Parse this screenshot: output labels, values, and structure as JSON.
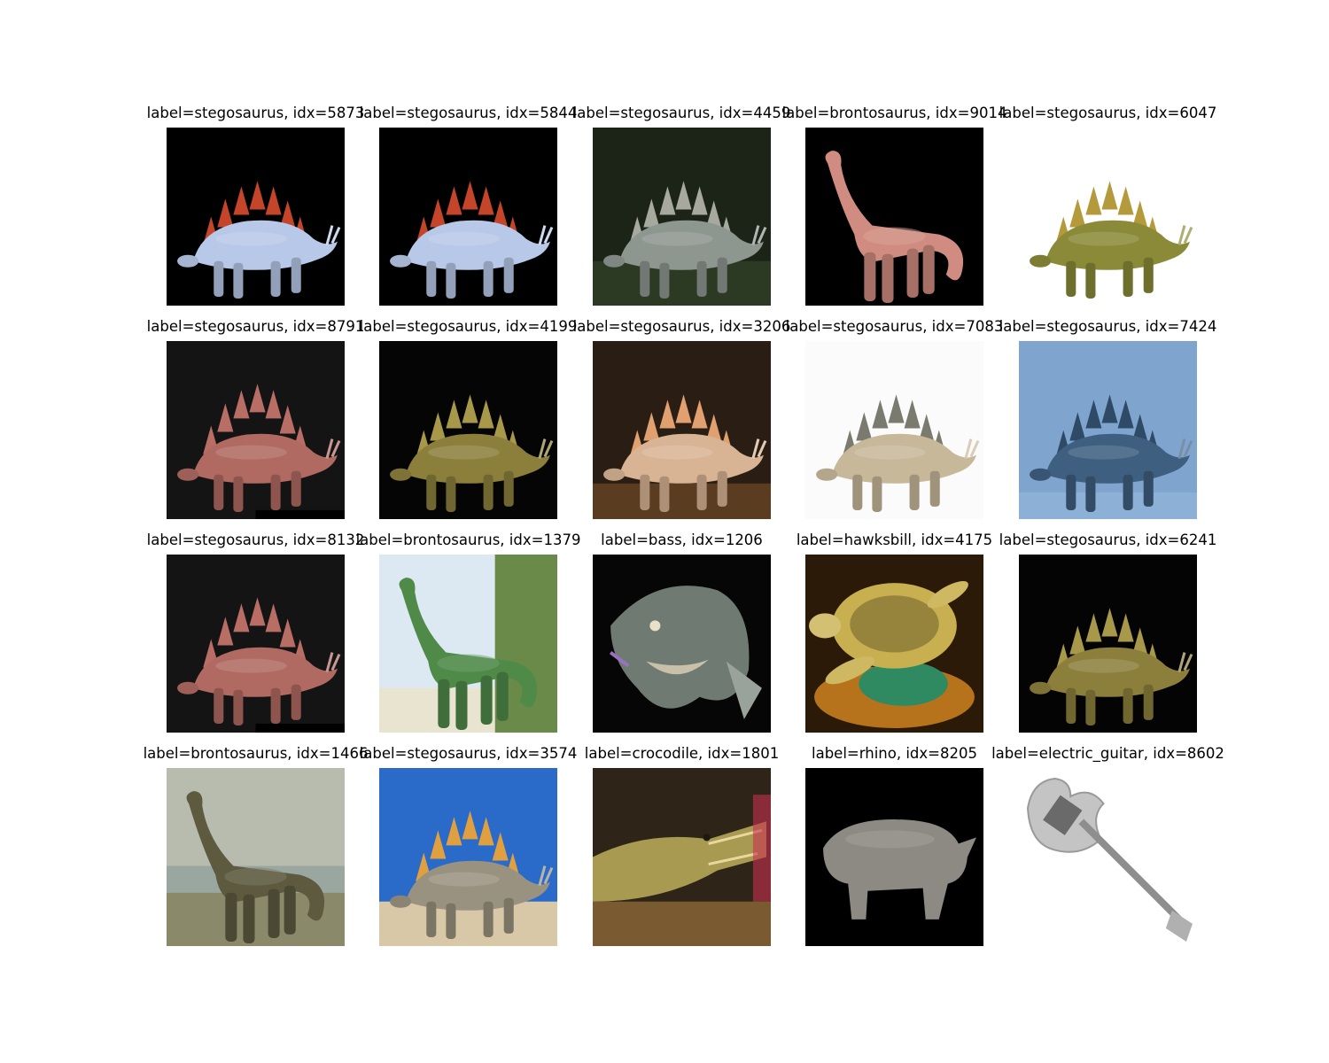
{
  "figure": {
    "panels": [
      {
        "title": "label=stegosaurus, idx=5873",
        "subject": "stegosaurus",
        "scene": "stego-colorful",
        "bg": "#000000",
        "body": "#b8c8e8",
        "accent": "#c4452a"
      },
      {
        "title": "label=stegosaurus, idx=5844",
        "subject": "stegosaurus",
        "scene": "stego-colorful",
        "bg": "#000000",
        "body": "#b8c8e8",
        "accent": "#c4452a"
      },
      {
        "title": "label=stegosaurus, idx=4459",
        "subject": "stegosaurus",
        "scene": "stego-gray",
        "bg": "#1c2418",
        "body": "#8e9690",
        "accent": "#a7a89e"
      },
      {
        "title": "label=brontosaurus, idx=9014",
        "subject": "brontosaurus",
        "scene": "bronto-pink",
        "bg": "#000000",
        "body": "#d08c80",
        "accent": "#b66f66"
      },
      {
        "title": "label=stegosaurus, idx=6047",
        "subject": "stegosaurus",
        "scene": "stego-olive",
        "bg": "#ffffff",
        "body": "#8a8a38",
        "accent": "#b49a3a"
      },
      {
        "title": "label=stegosaurus, idx=8791",
        "subject": "stegosaurus",
        "scene": "stego-red",
        "bg": "#141414",
        "body": "#b06a62",
        "accent": "#b86e64"
      },
      {
        "title": "label=stegosaurus, idx=4199",
        "subject": "stegosaurus",
        "scene": "stego-yellow",
        "bg": "#050505",
        "body": "#8c7f3c",
        "accent": "#a8994a"
      },
      {
        "title": "label=stegosaurus, idx=3206",
        "subject": "stegosaurus",
        "scene": "stego-tan",
        "bg": "#2a1e14",
        "body": "#d8b494",
        "accent": "#e0a070"
      },
      {
        "title": "label=stegosaurus, idx=7083",
        "subject": "stegosaurus",
        "scene": "stego-white",
        "bg": "#fbfbfb",
        "body": "#c8b89a",
        "accent": "#7a7a6e"
      },
      {
        "title": "label=stegosaurus, idx=7424",
        "subject": "stegosaurus",
        "scene": "stego-blue",
        "bg": "#7fa5cf",
        "body": "#3e5f80",
        "accent": "#2e4a66"
      },
      {
        "title": "label=stegosaurus, idx=8132",
        "subject": "stegosaurus",
        "scene": "stego-red",
        "bg": "#141414",
        "body": "#b06a62",
        "accent": "#b86e64"
      },
      {
        "title": "label=brontosaurus, idx=1379",
        "subject": "brontosaurus",
        "scene": "bronto-green",
        "bg": "#dde9f2",
        "body": "#4f8a48",
        "accent": "#e0b040"
      },
      {
        "title": "label=bass, idx=1206",
        "subject": "bass",
        "scene": "fish",
        "bg": "#060606",
        "body": "#6e7a72",
        "accent": "#c8c0a8"
      },
      {
        "title": "label=hawksbill, idx=4175",
        "subject": "hawksbill",
        "scene": "turtle",
        "bg": "#2c1a08",
        "body": "#c8b050",
        "accent": "#2f8a62"
      },
      {
        "title": "label=stegosaurus, idx=6241",
        "subject": "stegosaurus",
        "scene": "stego-yellow",
        "bg": "#040404",
        "body": "#8c7f3c",
        "accent": "#a8994a"
      },
      {
        "title": "label=brontosaurus, idx=1466",
        "subject": "brontosaurus",
        "scene": "bronto-painting",
        "bg": "#b8bcae",
        "body": "#5e5a40",
        "accent": "#9a9680"
      },
      {
        "title": "label=stegosaurus, idx=3574",
        "subject": "stegosaurus",
        "scene": "stego-painting",
        "bg": "#2a6ac8",
        "body": "#9a9280",
        "accent": "#e0a040"
      },
      {
        "title": "label=crocodile, idx=1801",
        "subject": "crocodile",
        "scene": "croc",
        "bg": "#2e2418",
        "body": "#a89a50",
        "accent": "#e8d8a0"
      },
      {
        "title": "label=rhino, idx=8205",
        "subject": "rhino",
        "scene": "rhino",
        "bg": "#000000",
        "body": "#8c8a82",
        "accent": "#6e6c66"
      },
      {
        "title": "label=electric_guitar, idx=8602",
        "subject": "electric_guitar",
        "scene": "guitar",
        "bg": "#ffffff",
        "body": "#c4c4c4",
        "accent": "#6a6a6a"
      }
    ]
  }
}
